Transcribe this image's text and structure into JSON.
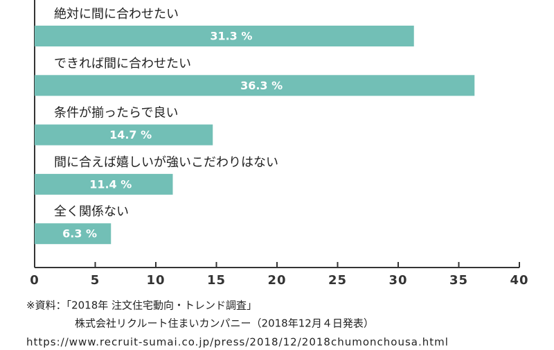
{
  "chart_data": {
    "type": "bar",
    "orientation": "horizontal",
    "categories": [
      "絶対に間に合わせたい",
      "できれば間に合わせたい",
      "条件が揃ったらで良い",
      "間に合えば嬉しいが強いこだわりはない",
      "全く関係ない"
    ],
    "values": [
      31.3,
      36.3,
      14.7,
      11.4,
      6.3
    ],
    "value_labels": [
      "31.3 %",
      "36.3 %",
      "14.7 %",
      "11.4 %",
      "6.3 %"
    ],
    "color": "#72bfb6",
    "xlim": [
      0,
      40
    ],
    "xticks": [
      0,
      5,
      10,
      15,
      20,
      25,
      30,
      35,
      40
    ],
    "source": [
      "※資料：「2018年 注文住宅動向・トレンド調査」",
      "株式会社リクルート住まいカンパニー（2018年12月４日発表）",
      "https://www.recruit-sumai.co.jp/press/2018/12/2018chumonchousa.html"
    ]
  }
}
